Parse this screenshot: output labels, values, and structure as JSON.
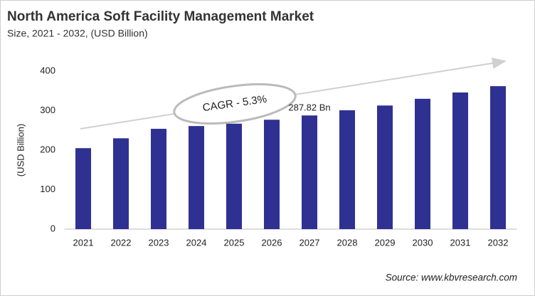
{
  "chart_data": {
    "type": "bar",
    "title": "North America Soft Facility Management Market",
    "subtitle": "Size, 2021 - 2032, (USD Billion)",
    "y_label": "(USD Billion)",
    "categories": [
      "2021",
      "2022",
      "2023",
      "2024",
      "2025",
      "2026",
      "2027",
      "2028",
      "2029",
      "2030",
      "2031",
      "2032"
    ],
    "values": [
      205,
      230,
      254,
      261,
      267,
      277,
      287.82,
      301,
      313,
      330,
      346,
      362
    ],
    "value_labels": [
      null,
      null,
      null,
      null,
      null,
      null,
      "287.82 Bn",
      null,
      null,
      null,
      null,
      null
    ],
    "color": "#2e3192",
    "ylim": [
      0,
      400
    ],
    "yticks": [
      0,
      100,
      200,
      300,
      400
    ],
    "grid": false,
    "annotation": "CAGR - 5.3%",
    "source": "Source: www.kbvresearch.com"
  }
}
